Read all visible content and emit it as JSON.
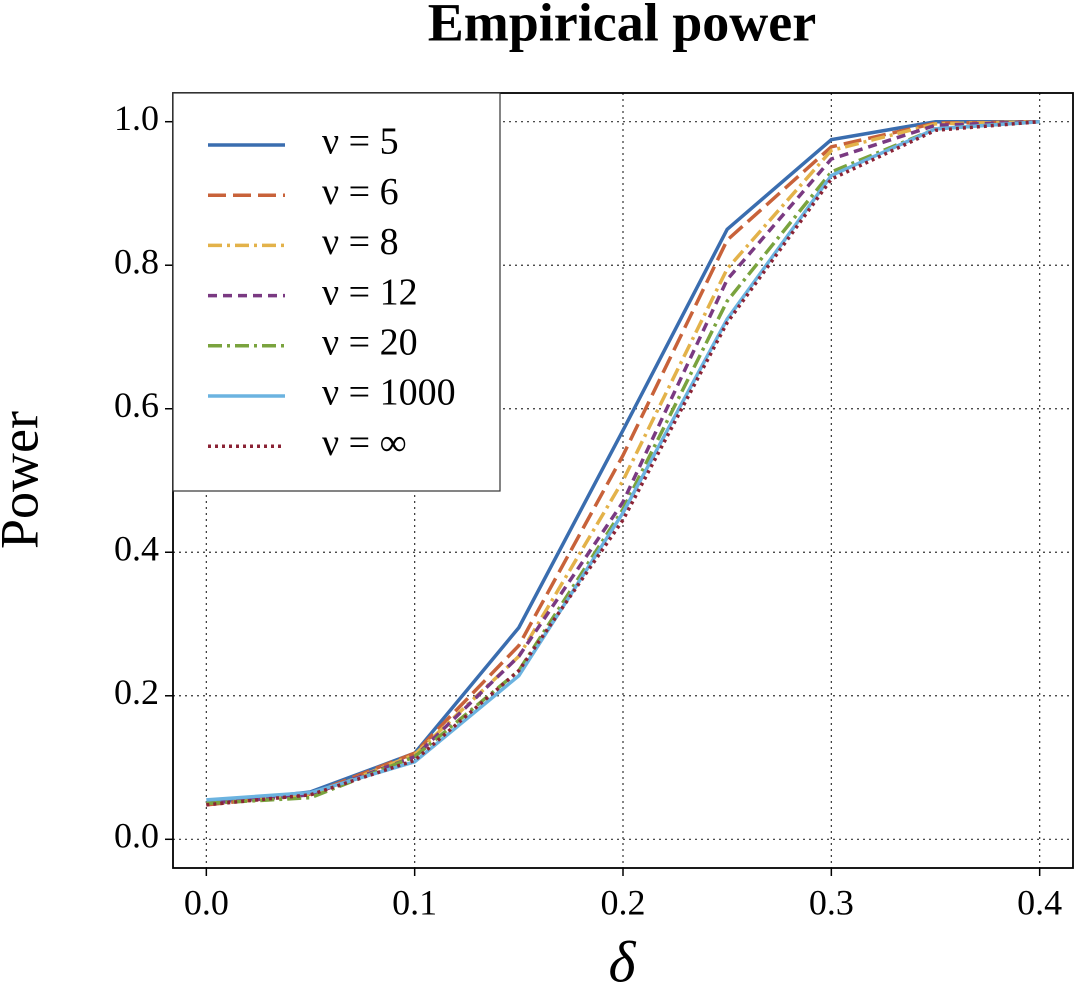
{
  "chart_data": {
    "type": "line",
    "title": "Empirical power",
    "xlabel": "δ",
    "ylabel": "Power",
    "x": [
      0,
      0.05,
      0.1,
      0.15,
      0.2,
      0.25,
      0.3,
      0.35,
      0.4
    ],
    "series": [
      {
        "name": "ν = 5",
        "color": "#3a6daf",
        "dash": "solid",
        "values": [
          0.05,
          0.066,
          0.12,
          0.295,
          0.57,
          0.85,
          0.975,
          1.0,
          1.0
        ]
      },
      {
        "name": "ν = 6",
        "color": "#c8623a",
        "dash": "dashed",
        "values": [
          0.048,
          0.063,
          0.12,
          0.27,
          0.535,
          0.835,
          0.965,
          0.998,
          1.0
        ]
      },
      {
        "name": "ν = 8",
        "color": "#e3b24a",
        "dash": "dashdot",
        "values": [
          0.05,
          0.06,
          0.118,
          0.255,
          0.5,
          0.795,
          0.96,
          0.997,
          1.0
        ]
      },
      {
        "name": "ν = 12",
        "color": "#7a3a82",
        "dash": "short-dashed",
        "values": [
          0.05,
          0.062,
          0.115,
          0.255,
          0.47,
          0.78,
          0.948,
          0.995,
          1.0
        ]
      },
      {
        "name": "ν = 20",
        "color": "#7aa33e",
        "dash": "dashdot",
        "values": [
          0.05,
          0.058,
          0.115,
          0.235,
          0.46,
          0.75,
          0.93,
          0.99,
          1.0
        ]
      },
      {
        "name": "ν = 1000",
        "color": "#6bb3e0",
        "dash": "solid",
        "values": [
          0.055,
          0.065,
          0.108,
          0.228,
          0.455,
          0.725,
          0.925,
          0.99,
          1.0
        ]
      },
      {
        "name": "ν = ∞",
        "color": "#8b2335",
        "dash": "dotted",
        "values": [
          0.048,
          0.062,
          0.11,
          0.235,
          0.445,
          0.72,
          0.92,
          0.988,
          1.0
        ]
      }
    ],
    "xlim": [
      -0.016,
      0.416
    ],
    "ylim": [
      -0.04,
      1.04
    ],
    "xticks": [
      {
        "value": 0,
        "label": "0.0"
      },
      0.1,
      0.2,
      0.3,
      0.4
    ],
    "yticks": [
      {
        "value": 0,
        "label": "0.0"
      },
      0.2,
      0.4,
      0.6,
      0.8,
      {
        "value": 1,
        "label": "1.0"
      }
    ],
    "grid": true,
    "legend": "upper-left"
  }
}
